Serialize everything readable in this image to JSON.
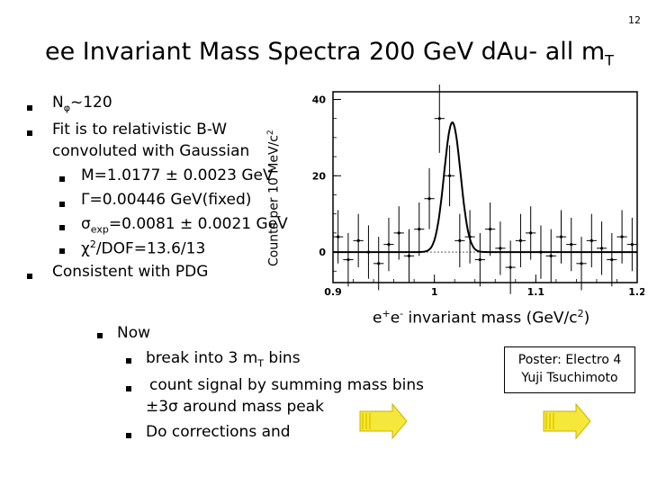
{
  "page_number": "12",
  "title": {
    "main": "ee Invariant Mass Spectra 200 GeV d",
    "after_main": "Au- all m",
    "sub": "T"
  },
  "bullets_top": {
    "b1": {
      "prefix": "N",
      "sub": "φ",
      "suffix": "~120"
    },
    "b2_line1": "Fit is to relativistic B-W",
    "b2_line2": "convoluted with Gaussian",
    "sub1": "M=1.0177 ± 0.0023 GeV",
    "sub2": "Γ=0.00446 GeV(fixed)",
    "sub3": {
      "prefix": "σ",
      "sub": "exp",
      "suffix": "=0.0081 ± 0.0021 GeV"
    },
    "sub4": {
      "prefix": "χ",
      "sup": "2",
      "suffix": "/DOF=13.6/13"
    },
    "b3": "Consistent with PDG"
  },
  "bullets_bottom": {
    "now": "Now",
    "item1": {
      "prefix": "break into 3 m",
      "sub": "T",
      "suffix": " bins"
    },
    "item2_line1": "count signal by summing mass bins",
    "item2_line2": "±3σ around mass peak",
    "item3": "Do corrections and"
  },
  "poster": {
    "line1": "Poster: Electro 4",
    "line2": "Yuji Tsuchimoto"
  },
  "colors": {
    "arrow_fill": "#f5e83a",
    "arrow_stroke": "#c8b400",
    "arrow_stripe": "#e8d000"
  },
  "chart_data": {
    "type": "histogram-with-fit",
    "title": "",
    "xlabel": {
      "prefix": "e",
      "sup1": "+",
      "mid": "e",
      "sup2": "-",
      "suffix": " invariant mass (GeV/c",
      "sup3": "2",
      "end": ")"
    },
    "ylabel": {
      "prefix": "Counts per 10 MeV/c",
      "sup": "2"
    },
    "xlim": [
      0.9,
      1.2
    ],
    "ylim": [
      -8,
      42
    ],
    "x_ticks": [
      {
        "value": 0.9,
        "label": "0.9"
      },
      {
        "value": 1.0,
        "label": "1"
      },
      {
        "value": 1.1,
        "label": "1.1"
      },
      {
        "value": 1.2,
        "label": "1.2"
      }
    ],
    "y_ticks": [
      {
        "value": 0,
        "label": "0"
      },
      {
        "value": 20,
        "label": "20"
      },
      {
        "value": 40,
        "label": "40"
      }
    ],
    "series": [
      {
        "name": "data",
        "x": [
          0.905,
          0.915,
          0.925,
          0.935,
          0.945,
          0.955,
          0.965,
          0.975,
          0.985,
          0.995,
          1.005,
          1.015,
          1.025,
          1.035,
          1.045,
          1.055,
          1.065,
          1.075,
          1.085,
          1.095,
          1.105,
          1.115,
          1.125,
          1.135,
          1.145,
          1.155,
          1.165,
          1.175,
          1.185,
          1.195
        ],
        "values": [
          4,
          -2,
          3,
          0,
          -3,
          2,
          5,
          -1,
          6,
          14,
          35,
          20,
          3,
          4,
          -2,
          6,
          1,
          -4,
          3,
          5,
          0,
          -1,
          4,
          2,
          -3,
          3,
          1,
          -2,
          4,
          2
        ],
        "errors": [
          7,
          7,
          7,
          7,
          7,
          7,
          7,
          7,
          7,
          8,
          9,
          8,
          7,
          7,
          7,
          7,
          7,
          7,
          7,
          7,
          7,
          7,
          7,
          7,
          7,
          7,
          7,
          7,
          7,
          7
        ]
      },
      {
        "name": "fit",
        "peak_mean": 1.0177,
        "peak_sigma": 0.0081,
        "peak_height": 34,
        "baseline": 0
      }
    ]
  }
}
